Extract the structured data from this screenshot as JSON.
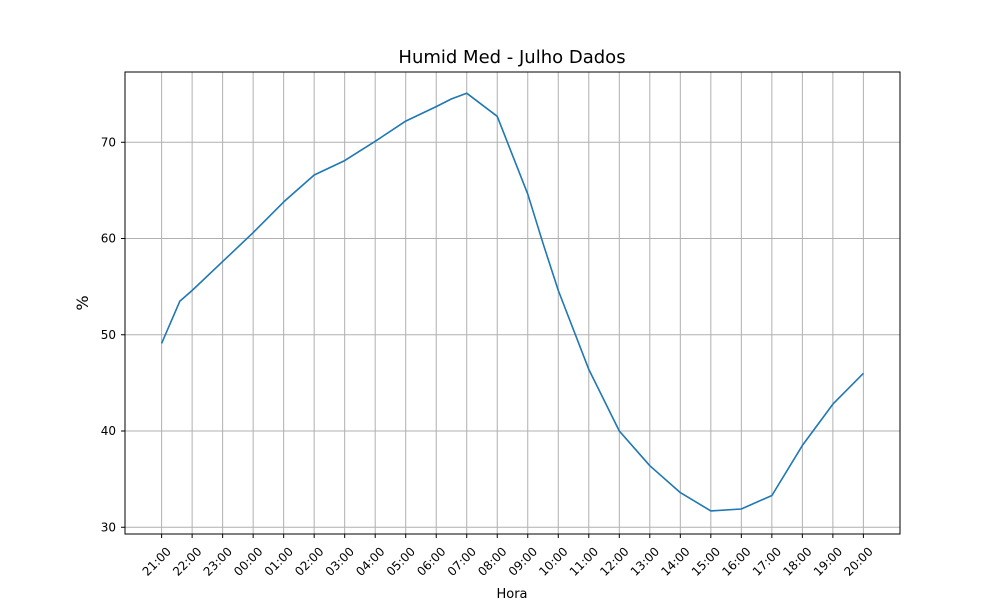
{
  "chart_data": {
    "type": "line",
    "title": "Humid Med - Julho Dados",
    "xlabel": "Hora",
    "ylabel": "%",
    "x": [
      0,
      0.6,
      1,
      2,
      3,
      3.5,
      4,
      5,
      6,
      6.5,
      7,
      8,
      9,
      9.5,
      10,
      11,
      12,
      12.5,
      13,
      14,
      15,
      16,
      17,
      18,
      19,
      20,
      21,
      22,
      23
    ],
    "x_tick_labels": [
      "21:00",
      "22:00",
      "23:00",
      "00:00",
      "01:00",
      "02:00",
      "03:00",
      "04:00",
      "05:00",
      "06:00",
      "07:00",
      "08:00",
      "09:00",
      "10:00",
      "11:00",
      "12:00",
      "13:00",
      "14:00",
      "15:00",
      "16:00",
      "17:00",
      "18:00",
      "19:00",
      "20:00"
    ],
    "x_tick_positions": [
      0,
      1,
      2,
      3,
      4,
      5,
      6,
      7,
      8,
      9,
      10,
      11,
      12,
      13,
      14,
      15,
      16,
      17,
      18,
      19,
      20,
      21,
      22,
      23
    ],
    "series": [
      {
        "values": [
          49.1,
          53.5,
          54.6,
          57.6,
          60.6,
          62.2,
          63.8,
          66.6,
          68.1,
          69.1,
          70.1,
          72.2,
          73.7,
          74.5,
          75.1,
          72.7,
          64.6,
          59.5,
          54.6,
          46.4,
          40.0,
          36.4,
          33.6,
          31.7,
          31.9,
          33.3,
          38.5,
          42.8,
          46.0
        ],
        "color": "#1f77b4"
      }
    ],
    "yticks": [
      30,
      40,
      50,
      60,
      70
    ],
    "xlim": [
      -1.2,
      24.2
    ],
    "ylim": [
      29.3,
      77.3
    ],
    "grid": true
  }
}
